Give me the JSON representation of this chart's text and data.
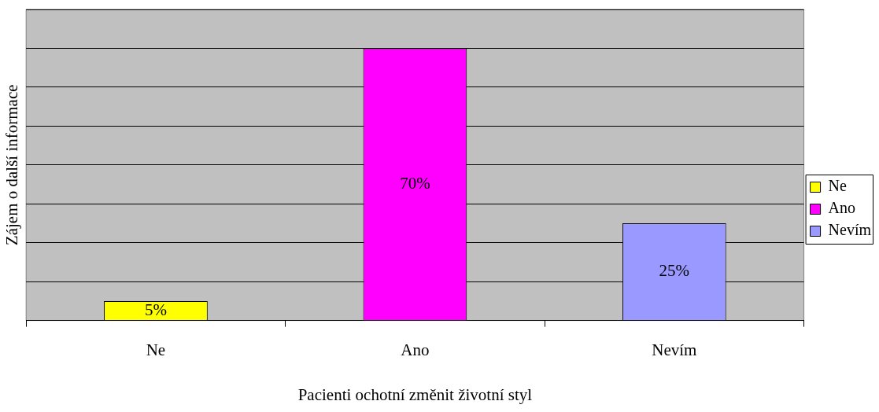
{
  "chart_data": {
    "type": "bar",
    "xlabel": "Pacienti ochotní změnit životní styl",
    "ylabel": "Zájem o další informace",
    "categories": [
      "Ne",
      "Ano",
      "Nevím"
    ],
    "series": [
      {
        "name": "Ne",
        "color": "#ffff00",
        "values": [
          5,
          null,
          null
        ],
        "value_labels": [
          "5%",
          null,
          null
        ]
      },
      {
        "name": "Ano",
        "color": "#ff00ff",
        "values": [
          null,
          70,
          null
        ],
        "value_labels": [
          null,
          "70%",
          null
        ]
      },
      {
        "name": "Nevím",
        "color": "#9999ff",
        "values": [
          null,
          null,
          25
        ],
        "value_labels": [
          null,
          null,
          "25%"
        ]
      }
    ],
    "ylim": [
      0,
      80
    ],
    "yticks": [
      {
        "value": 0,
        "label": null
      },
      {
        "value": 10,
        "label": null
      },
      {
        "value": 20,
        "label": null
      },
      {
        "value": 30,
        "label": null
      },
      {
        "value": 40,
        "label": null
      },
      {
        "value": 50,
        "label": null
      },
      {
        "value": 60,
        "label": null
      },
      {
        "value": 70,
        "label": null
      },
      {
        "value": 80,
        "label": null
      }
    ],
    "grid": "y",
    "legend": "right",
    "tick_labels": "x"
  }
}
